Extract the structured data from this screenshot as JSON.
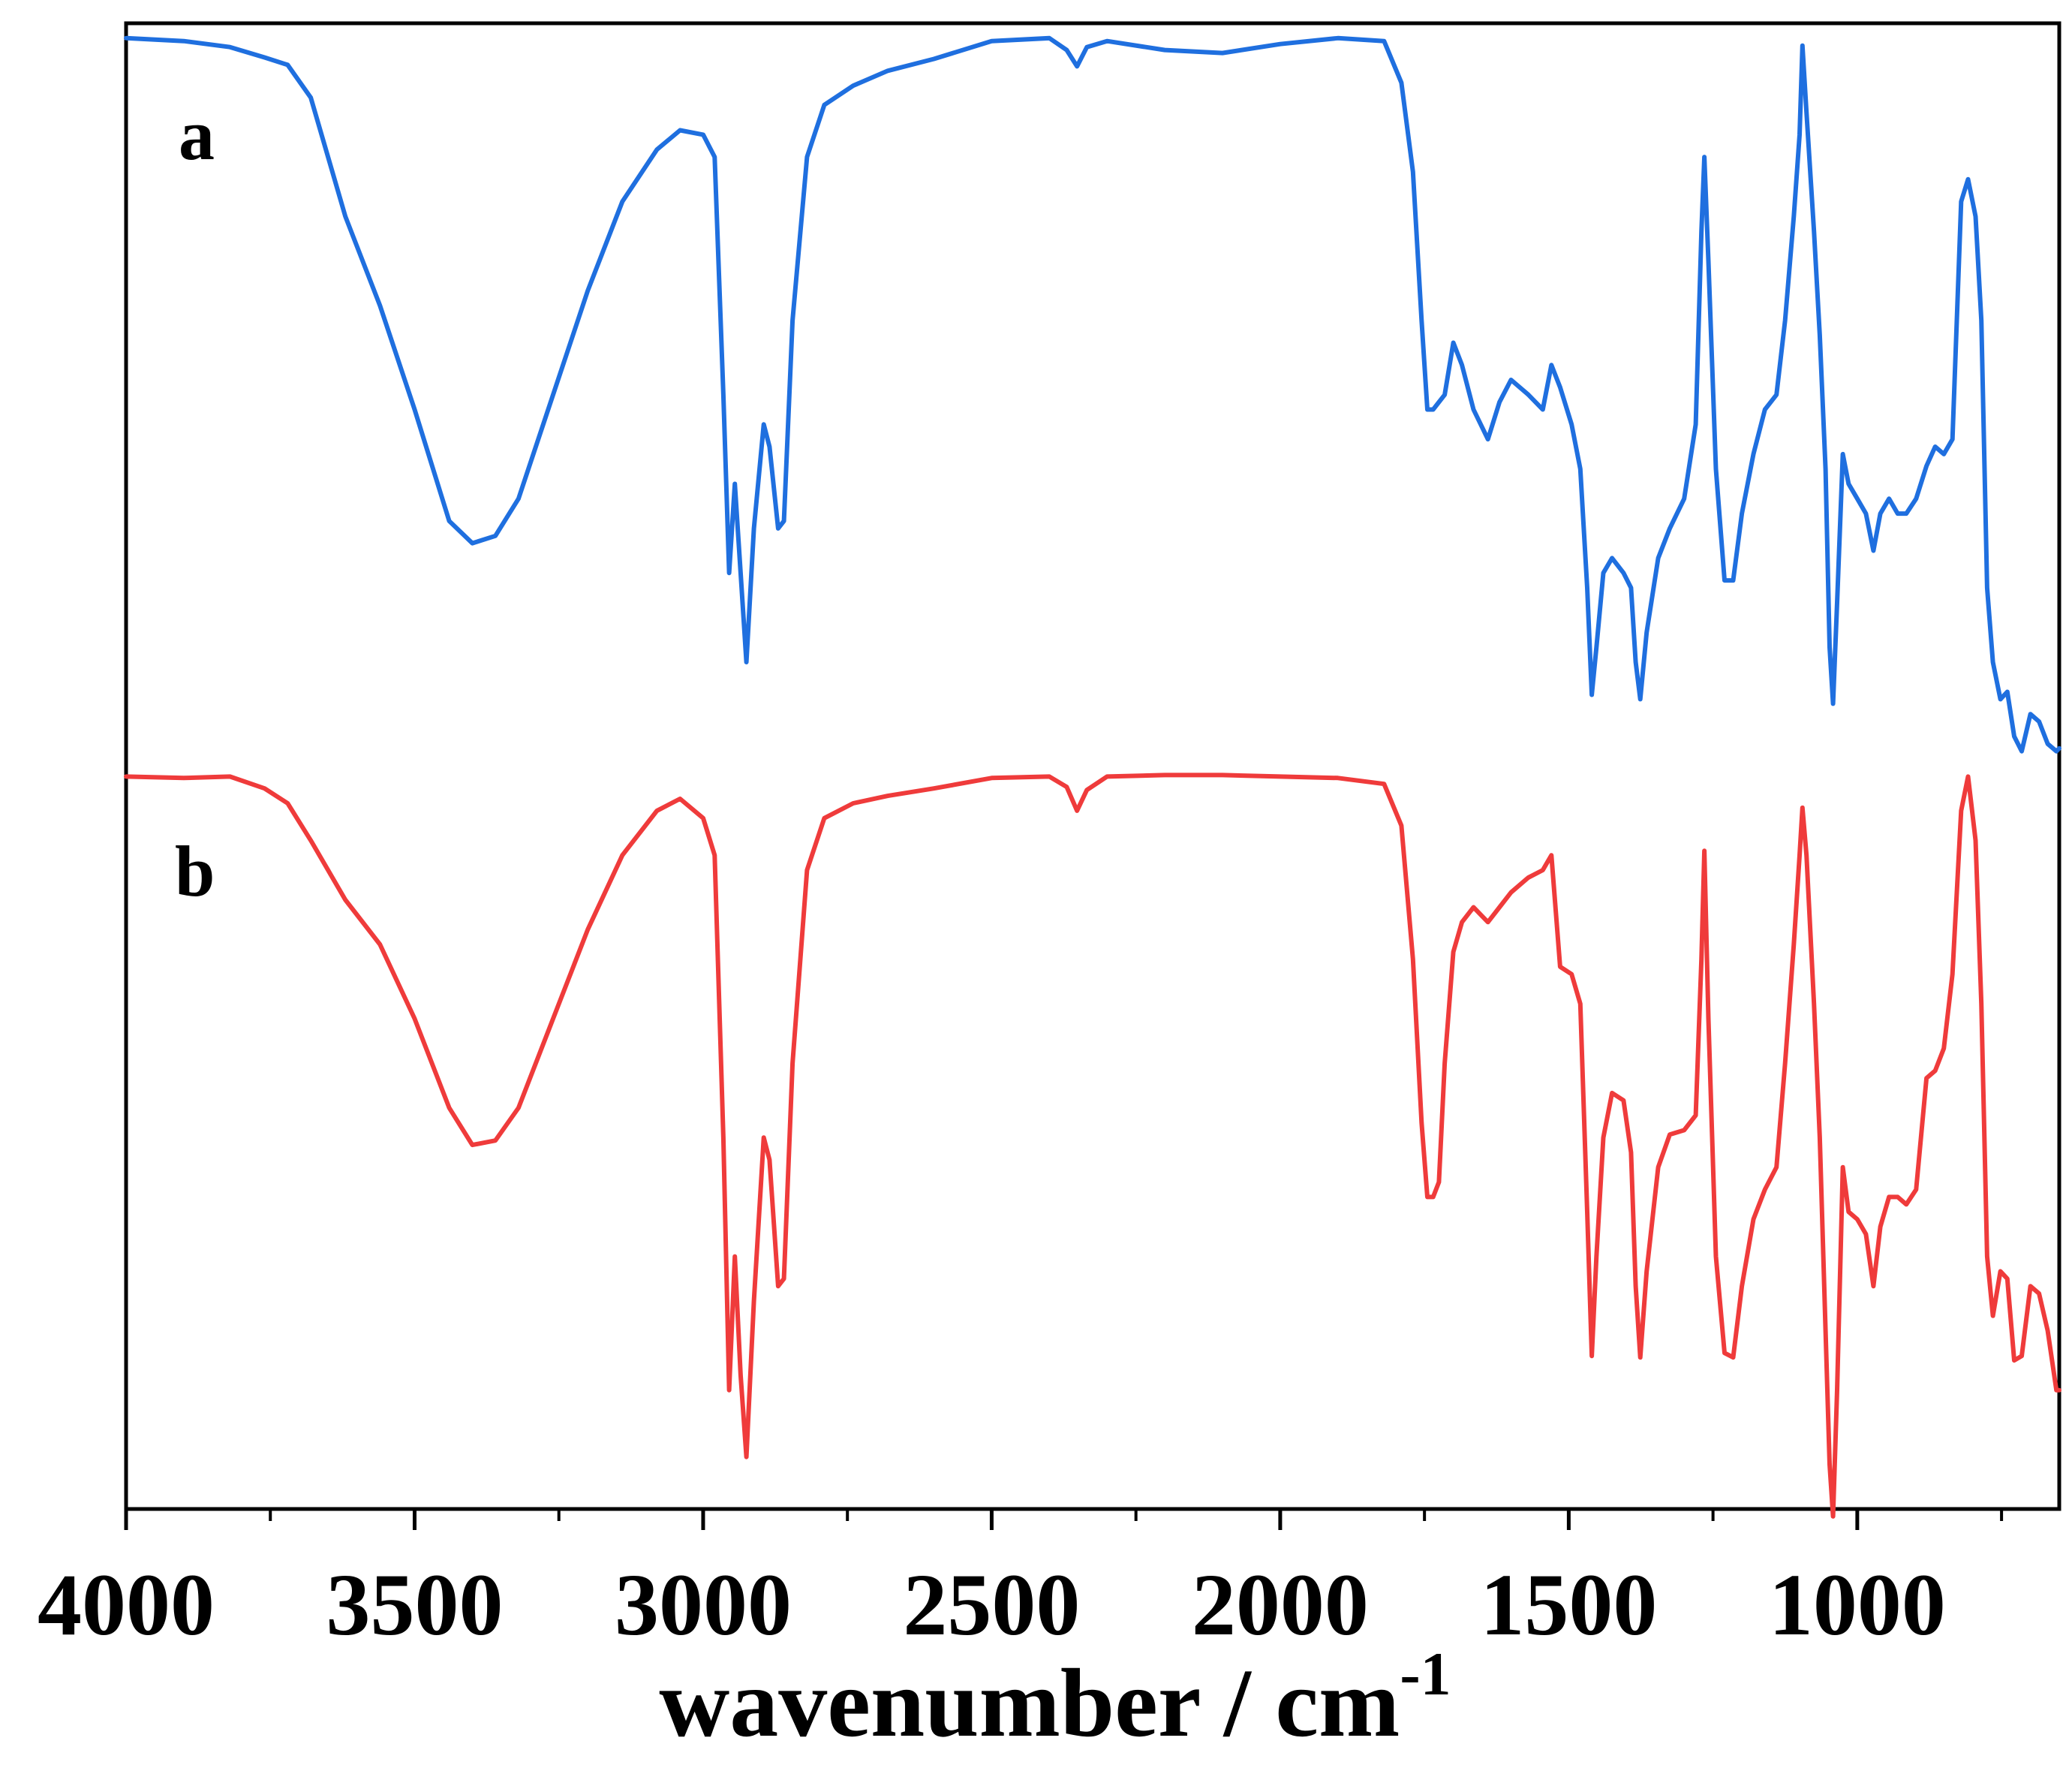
{
  "chart_data": {
    "type": "line",
    "title": "",
    "xlabel": "wavenumber / cm",
    "xlabel_superscript": "-1",
    "ylabel": "",
    "xlim": [
      4000,
      650
    ],
    "x_ticks": [
      4000,
      3500,
      3000,
      2500,
      2000,
      1500,
      1000
    ],
    "x_tick_labels": [
      "4000",
      "3500",
      "3000",
      "2500",
      "2000",
      "1500",
      "1000"
    ],
    "x_minor_ticks": [
      3750,
      3250,
      2750,
      2250,
      1750,
      1250,
      750
    ],
    "ylim": [
      0,
      100
    ],
    "grid": false,
    "legend": "none",
    "series": [
      {
        "name": "a",
        "label": "a",
        "color": "#1f6fdf",
        "points": [
          [
            4000,
            99
          ],
          [
            3900,
            98.8
          ],
          [
            3820,
            98.4
          ],
          [
            3760,
            97.7
          ],
          [
            3720,
            97.2
          ],
          [
            3680,
            95
          ],
          [
            3620,
            87
          ],
          [
            3560,
            81
          ],
          [
            3500,
            74
          ],
          [
            3440,
            66.5
          ],
          [
            3400,
            65
          ],
          [
            3360,
            65.5
          ],
          [
            3320,
            68
          ],
          [
            3260,
            75
          ],
          [
            3200,
            82
          ],
          [
            3140,
            88
          ],
          [
            3080,
            91.5
          ],
          [
            3040,
            92.8
          ],
          [
            3000,
            92.5
          ],
          [
            2980,
            91
          ],
          [
            2965,
            75
          ],
          [
            2955,
            63
          ],
          [
            2945,
            69
          ],
          [
            2935,
            63
          ],
          [
            2925,
            57
          ],
          [
            2912,
            66
          ],
          [
            2895,
            73
          ],
          [
            2885,
            71.5
          ],
          [
            2870,
            66
          ],
          [
            2860,
            66.5
          ],
          [
            2845,
            80
          ],
          [
            2820,
            91
          ],
          [
            2790,
            94.5
          ],
          [
            2740,
            95.8
          ],
          [
            2680,
            96.8
          ],
          [
            2600,
            97.6
          ],
          [
            2500,
            98.8
          ],
          [
            2400,
            99
          ],
          [
            2370,
            98.2
          ],
          [
            2352,
            97.1
          ],
          [
            2335,
            98.4
          ],
          [
            2300,
            98.8
          ],
          [
            2200,
            98.2
          ],
          [
            2100,
            98
          ],
          [
            2000,
            98.6
          ],
          [
            1900,
            99
          ],
          [
            1820,
            98.8
          ],
          [
            1790,
            96
          ],
          [
            1770,
            90
          ],
          [
            1755,
            80
          ],
          [
            1745,
            74
          ],
          [
            1735,
            74
          ],
          [
            1725,
            74.5
          ],
          [
            1715,
            75
          ],
          [
            1700,
            78.5
          ],
          [
            1685,
            77
          ],
          [
            1665,
            74
          ],
          [
            1640,
            72
          ],
          [
            1620,
            74.5
          ],
          [
            1600,
            76
          ],
          [
            1570,
            75
          ],
          [
            1545,
            74
          ],
          [
            1530,
            77
          ],
          [
            1515,
            75.5
          ],
          [
            1495,
            73
          ],
          [
            1480,
            70
          ],
          [
            1468,
            62
          ],
          [
            1460,
            54.8
          ],
          [
            1452,
            58
          ],
          [
            1440,
            63
          ],
          [
            1425,
            64
          ],
          [
            1405,
            63
          ],
          [
            1392,
            62
          ],
          [
            1384,
            57
          ],
          [
            1376,
            54.5
          ],
          [
            1365,
            59
          ],
          [
            1345,
            64
          ],
          [
            1325,
            66
          ],
          [
            1300,
            68
          ],
          [
            1280,
            73
          ],
          [
            1270,
            86
          ],
          [
            1265,
            91
          ],
          [
            1258,
            84
          ],
          [
            1245,
            70
          ],
          [
            1230,
            62.5
          ],
          [
            1215,
            62.5
          ],
          [
            1200,
            67
          ],
          [
            1180,
            71
          ],
          [
            1160,
            74
          ],
          [
            1140,
            75
          ],
          [
            1125,
            80
          ],
          [
            1110,
            87
          ],
          [
            1100,
            92.5
          ],
          [
            1095,
            98.5
          ],
          [
            1088,
            94
          ],
          [
            1075,
            86
          ],
          [
            1065,
            79
          ],
          [
            1055,
            70
          ],
          [
            1048,
            58
          ],
          [
            1042,
            54.2
          ],
          [
            1035,
            61
          ],
          [
            1025,
            71
          ],
          [
            1015,
            69
          ],
          [
            1000,
            68
          ],
          [
            985,
            67
          ],
          [
            972,
            64.5
          ],
          [
            960,
            67
          ],
          [
            945,
            68
          ],
          [
            930,
            67
          ],
          [
            915,
            67
          ],
          [
            898,
            68
          ],
          [
            880,
            70.2
          ],
          [
            865,
            71.5
          ],
          [
            850,
            71
          ],
          [
            835,
            72
          ],
          [
            820,
            88
          ],
          [
            808,
            89.5
          ],
          [
            795,
            87
          ],
          [
            785,
            80
          ],
          [
            775,
            62
          ],
          [
            765,
            57
          ],
          [
            752,
            54.5
          ],
          [
            740,
            55
          ],
          [
            728,
            52
          ],
          [
            715,
            51
          ],
          [
            700,
            53.5
          ],
          [
            685,
            53
          ],
          [
            670,
            51.5
          ],
          [
            655,
            51
          ],
          [
            650,
            51.2
          ]
        ]
      },
      {
        "name": "b",
        "label": "b",
        "color": "#ef3b3b",
        "points": [
          [
            4000,
            49.3
          ],
          [
            3900,
            49.2
          ],
          [
            3820,
            49.3
          ],
          [
            3760,
            48.5
          ],
          [
            3720,
            47.5
          ],
          [
            3680,
            45
          ],
          [
            3620,
            41
          ],
          [
            3560,
            38
          ],
          [
            3500,
            33
          ],
          [
            3440,
            27
          ],
          [
            3400,
            24.5
          ],
          [
            3360,
            24.8
          ],
          [
            3320,
            27
          ],
          [
            3260,
            33
          ],
          [
            3200,
            39
          ],
          [
            3140,
            44
          ],
          [
            3080,
            47
          ],
          [
            3040,
            47.8
          ],
          [
            3000,
            46.5
          ],
          [
            2980,
            44
          ],
          [
            2965,
            25
          ],
          [
            2955,
            8
          ],
          [
            2945,
            17
          ],
          [
            2935,
            9
          ],
          [
            2925,
            3.5
          ],
          [
            2912,
            14
          ],
          [
            2895,
            25
          ],
          [
            2885,
            23.5
          ],
          [
            2870,
            15
          ],
          [
            2860,
            15.5
          ],
          [
            2845,
            30
          ],
          [
            2820,
            43
          ],
          [
            2790,
            46.5
          ],
          [
            2740,
            47.5
          ],
          [
            2680,
            48
          ],
          [
            2600,
            48.5
          ],
          [
            2500,
            49.2
          ],
          [
            2400,
            49.3
          ],
          [
            2370,
            48.6
          ],
          [
            2352,
            47
          ],
          [
            2335,
            48.4
          ],
          [
            2300,
            49.3
          ],
          [
            2200,
            49.4
          ],
          [
            2100,
            49.4
          ],
          [
            2000,
            49.3
          ],
          [
            1900,
            49.2
          ],
          [
            1820,
            48.8
          ],
          [
            1790,
            46
          ],
          [
            1770,
            37
          ],
          [
            1755,
            26
          ],
          [
            1745,
            21
          ],
          [
            1735,
            21
          ],
          [
            1725,
            22
          ],
          [
            1715,
            30
          ],
          [
            1700,
            37.5
          ],
          [
            1685,
            39.5
          ],
          [
            1665,
            40.5
          ],
          [
            1640,
            39.5
          ],
          [
            1620,
            40.5
          ],
          [
            1600,
            41.5
          ],
          [
            1570,
            42.5
          ],
          [
            1545,
            43
          ],
          [
            1530,
            44
          ],
          [
            1515,
            36.5
          ],
          [
            1495,
            36
          ],
          [
            1480,
            34
          ],
          [
            1468,
            20
          ],
          [
            1460,
            10.3
          ],
          [
            1452,
            17
          ],
          [
            1440,
            25
          ],
          [
            1425,
            28
          ],
          [
            1405,
            27.5
          ],
          [
            1392,
            24
          ],
          [
            1384,
            15
          ],
          [
            1376,
            10.2
          ],
          [
            1365,
            16
          ],
          [
            1345,
            23
          ],
          [
            1325,
            25.2
          ],
          [
            1300,
            25.5
          ],
          [
            1280,
            26.5
          ],
          [
            1270,
            37
          ],
          [
            1265,
            44.3
          ],
          [
            1258,
            33
          ],
          [
            1245,
            17
          ],
          [
            1230,
            10.5
          ],
          [
            1215,
            10.2
          ],
          [
            1200,
            15
          ],
          [
            1180,
            19.5
          ],
          [
            1160,
            21.5
          ],
          [
            1140,
            23
          ],
          [
            1125,
            30
          ],
          [
            1110,
            38
          ],
          [
            1100,
            44
          ],
          [
            1095,
            47.2
          ],
          [
            1088,
            44
          ],
          [
            1075,
            34
          ],
          [
            1065,
            25
          ],
          [
            1055,
            12
          ],
          [
            1048,
            3
          ],
          [
            1042,
            -0.5
          ],
          [
            1035,
            8
          ],
          [
            1025,
            23
          ],
          [
            1015,
            20
          ],
          [
            1000,
            19.5
          ],
          [
            985,
            18.5
          ],
          [
            972,
            15
          ],
          [
            960,
            19
          ],
          [
            945,
            21
          ],
          [
            930,
            21
          ],
          [
            915,
            20.5
          ],
          [
            898,
            21.5
          ],
          [
            880,
            29
          ],
          [
            865,
            29.5
          ],
          [
            850,
            31
          ],
          [
            835,
            36
          ],
          [
            820,
            47
          ],
          [
            808,
            49.3
          ],
          [
            795,
            45
          ],
          [
            785,
            34
          ],
          [
            775,
            17
          ],
          [
            765,
            13
          ],
          [
            752,
            16
          ],
          [
            740,
            15.5
          ],
          [
            728,
            10
          ],
          [
            715,
            10.3
          ],
          [
            700,
            15
          ],
          [
            685,
            14.5
          ],
          [
            670,
            12
          ],
          [
            655,
            8
          ],
          [
            650,
            8
          ]
        ]
      }
    ]
  }
}
